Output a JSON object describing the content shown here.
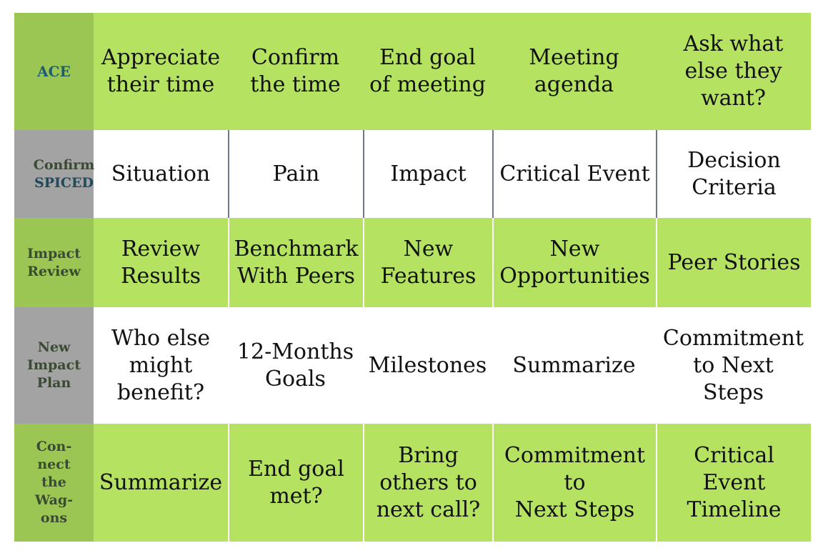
{
  "rows": [
    {
      "label": "ACE",
      "cells": [
        "Appreciate\ntheir time",
        "Confirm\nthe time",
        "End goal\nof meeting",
        "Meeting\nagenda",
        "Ask what\nelse they\nwant?"
      ]
    },
    {
      "label_line1": "Confirm",
      "label_line2": "SPICED",
      "cells": [
        "Situation",
        "Pain",
        "Impact",
        "Critical Event",
        "Decision\nCriteria"
      ]
    },
    {
      "label": "Impact\nReview",
      "cells": [
        "Review\nResults",
        "Benchmark\nWith Peers",
        "New\nFeatures",
        "New\nOpportunities",
        "Peer Stories"
      ]
    },
    {
      "label": "New\nImpact\nPlan",
      "cells": [
        "Who else\nmight\nbenefit?",
        "12-Months\nGoals",
        "Milestones",
        "Summarize",
        "Commitment\nto Next\nSteps"
      ]
    },
    {
      "label": "Con-\nnect\nthe\nWag-\nons",
      "cells": [
        "Summarize",
        "End goal\nmet?",
        "Bring\nothers to\nnext call?",
        "Commitment\nto\nNext Steps",
        "Critical\nEvent\nTimeline"
      ]
    }
  ],
  "colors": {
    "green": "#b5e261",
    "label_green": "#9bc653",
    "label_gray": "#a3a3a3",
    "white": "#ffffff"
  }
}
